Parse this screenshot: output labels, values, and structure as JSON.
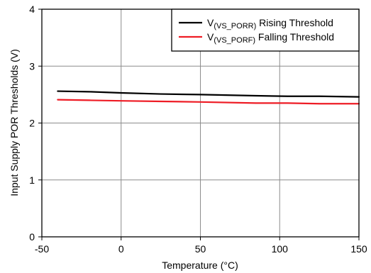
{
  "chart_data": {
    "type": "line",
    "xlabel": "Temperature (°C)",
    "ylabel": "Input Supply POR Thresholds (V)",
    "xlim": [
      -50,
      150
    ],
    "ylim": [
      0,
      4
    ],
    "xticks": [
      -50,
      0,
      50,
      100,
      150
    ],
    "yticks": [
      0,
      1,
      2,
      3,
      4
    ],
    "grid": true,
    "legend_position": "top-right",
    "series": [
      {
        "name_main": "V",
        "name_sub": "(VS_PORR)",
        "name_rest": " Rising Threshold",
        "color": "#000000",
        "x": [
          -40,
          -20,
          0,
          25,
          50,
          85,
          105,
          125,
          150
        ],
        "values": [
          2.56,
          2.55,
          2.53,
          2.51,
          2.5,
          2.48,
          2.47,
          2.47,
          2.46
        ]
      },
      {
        "name_main": "V",
        "name_sub": "(VS_PORF)",
        "name_rest": " Falling Threshold",
        "color": "#ee1c25",
        "x": [
          -40,
          -20,
          0,
          25,
          50,
          85,
          105,
          125,
          150
        ],
        "values": [
          2.41,
          2.4,
          2.39,
          2.38,
          2.37,
          2.35,
          2.35,
          2.34,
          2.34
        ]
      }
    ]
  }
}
